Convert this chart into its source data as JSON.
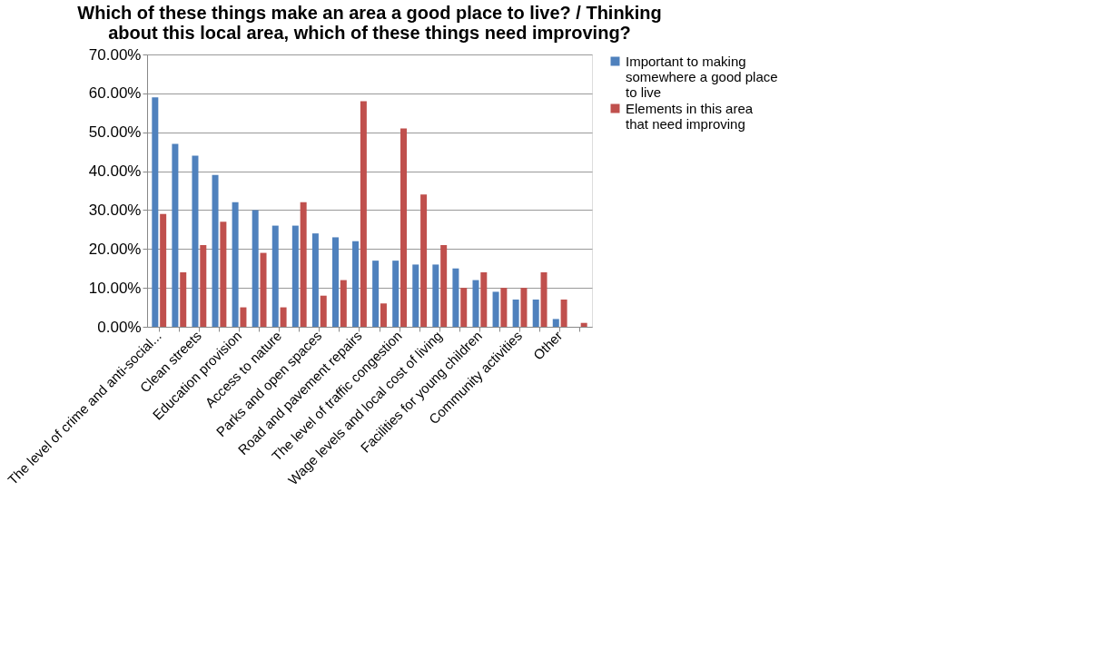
{
  "chart_data": {
    "type": "bar",
    "title": "Which of these things make an area a good place to live? / Thinking about this local area, which of these things need improving?",
    "categories": [
      "The level of crime and anti-social...",
      null,
      "Clean streets",
      null,
      "Education provision",
      null,
      "Access to nature",
      null,
      "Parks and open spaces",
      null,
      "Road and pavement repairs",
      null,
      "The level of traffic congestion",
      null,
      "Wage levels and local cost of living",
      null,
      "Facilities for young children",
      null,
      "Community activities",
      null,
      "Other",
      null
    ],
    "series": [
      {
        "name": "Important to making somewhere a good place to live",
        "color": "#4f81bd",
        "values": [
          59,
          47,
          44,
          39,
          32,
          30,
          26,
          26,
          24,
          23,
          22,
          17,
          17,
          16,
          16,
          15,
          12,
          9,
          7,
          7,
          2,
          0
        ]
      },
      {
        "name": "Elements in this area that need improving",
        "color": "#c0504d",
        "values": [
          29,
          14,
          21,
          27,
          5,
          19,
          5,
          32,
          8,
          12,
          58,
          6,
          51,
          34,
          21,
          10,
          14,
          10,
          10,
          14,
          7,
          1
        ]
      }
    ],
    "ylim": [
      0,
      70
    ],
    "yticks": [
      {
        "value": 0,
        "label": "0.00%"
      },
      {
        "value": 10,
        "label": "10.00%"
      },
      {
        "value": 20,
        "label": "20.00%"
      },
      {
        "value": 30,
        "label": "30.00%"
      },
      {
        "value": 40,
        "label": "40.00%"
      },
      {
        "value": 50,
        "label": "50.00%"
      },
      {
        "value": 60,
        "label": "60.00%"
      },
      {
        "value": 70,
        "label": "70.00%"
      }
    ],
    "grid": "y",
    "legend": "right"
  }
}
